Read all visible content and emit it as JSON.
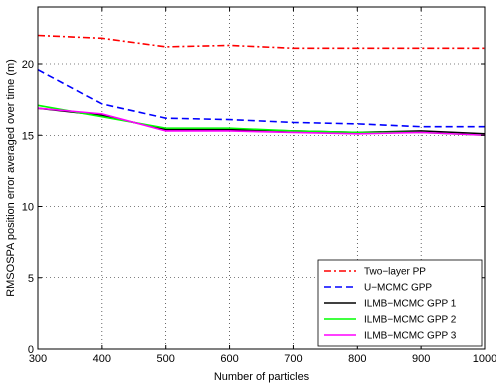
{
  "chart_data": {
    "type": "line",
    "title": "",
    "xlabel": "Number of particles",
    "ylabel": "RMSOSPA position error averaged over time (m)",
    "xlim": [
      300,
      1000
    ],
    "ylim": [
      0,
      24
    ],
    "xticks": [
      300,
      400,
      500,
      600,
      700,
      800,
      900,
      1000
    ],
    "yticks": [
      0,
      5,
      10,
      15,
      20
    ],
    "grid": true,
    "legend_position": "bottom-right",
    "x": [
      300,
      400,
      500,
      600,
      700,
      800,
      900,
      1000
    ],
    "series": [
      {
        "name": "Two−layer PP",
        "color": "#ff0000",
        "dash": "dashdot",
        "values": [
          22.0,
          21.8,
          21.2,
          21.3,
          21.1,
          21.1,
          21.1,
          21.1
        ]
      },
      {
        "name": "U−MCMC GPP",
        "color": "#0000ff",
        "dash": "dash",
        "values": [
          19.6,
          17.2,
          16.2,
          16.1,
          15.9,
          15.8,
          15.6,
          15.6
        ]
      },
      {
        "name": "ILMB−MCMC GPP 1",
        "color": "#000000",
        "dash": "solid",
        "values": [
          16.9,
          16.4,
          15.4,
          15.4,
          15.3,
          15.2,
          15.3,
          15.1
        ]
      },
      {
        "name": "ILMB−MCMC GPP 2",
        "color": "#00ff00",
        "dash": "solid",
        "values": [
          17.1,
          16.3,
          15.5,
          15.5,
          15.3,
          15.2,
          15.2,
          15.0
        ]
      },
      {
        "name": "ILMB−MCMC GPP 3",
        "color": "#ff00ff",
        "dash": "solid",
        "values": [
          16.9,
          16.5,
          15.3,
          15.3,
          15.2,
          15.1,
          15.2,
          15.0
        ]
      }
    ]
  }
}
